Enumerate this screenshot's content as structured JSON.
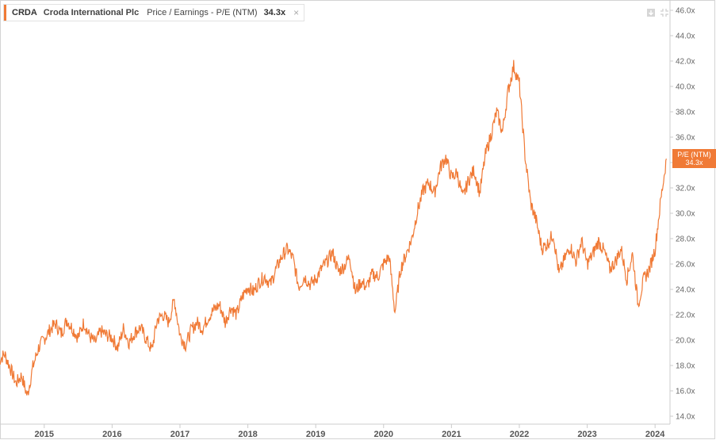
{
  "legend": {
    "ticker": "CRDA",
    "company": "Croda International Plc",
    "metric": "Price / Earnings - P/E (NTM)",
    "value": "34.3x",
    "close_icon": "×"
  },
  "toolbar": {
    "download_icon": "download-icon",
    "expand_icon": "collapse-icon"
  },
  "last_value_tag": {
    "label": "P/E (NTM)",
    "value": "34.3x"
  },
  "colors": {
    "series": "#f07a36",
    "axis": "#cccccc"
  },
  "chart_data": {
    "type": "line",
    "title": "",
    "xlabel": "",
    "ylabel": "",
    "x_ticks": [
      "2015",
      "2016",
      "2017",
      "2018",
      "2019",
      "2020",
      "2021",
      "2022",
      "2023",
      "2024"
    ],
    "y_ticks": [
      "14.0x",
      "16.0x",
      "18.0x",
      "20.0x",
      "22.0x",
      "24.0x",
      "26.0x",
      "28.0x",
      "30.0x",
      "32.0x",
      "34.0x",
      "36.0x",
      "38.0x",
      "40.0x",
      "42.0x",
      "44.0x",
      "46.0x"
    ],
    "ylim": [
      14,
      46
    ],
    "xlim": [
      "2014-05",
      "2024-03"
    ],
    "grid": false,
    "series": [
      {
        "name": "P/E (NTM)",
        "x": [
          "2014-05",
          "2014-06",
          "2014-07",
          "2014-08",
          "2014-09",
          "2014-10",
          "2014-11",
          "2014-12",
          "2015-01",
          "2015-02",
          "2015-03",
          "2015-04",
          "2015-05",
          "2015-06",
          "2015-07",
          "2015-08",
          "2015-09",
          "2015-10",
          "2015-11",
          "2015-12",
          "2016-01",
          "2016-02",
          "2016-03",
          "2016-04",
          "2016-05",
          "2016-06",
          "2016-07",
          "2016-08",
          "2016-09",
          "2016-10",
          "2016-11",
          "2016-12",
          "2017-01",
          "2017-02",
          "2017-03",
          "2017-04",
          "2017-05",
          "2017-06",
          "2017-07",
          "2017-08",
          "2017-09",
          "2017-10",
          "2017-11",
          "2017-12",
          "2018-01",
          "2018-02",
          "2018-03",
          "2018-04",
          "2018-05",
          "2018-06",
          "2018-07",
          "2018-08",
          "2018-09",
          "2018-10",
          "2018-11",
          "2018-12",
          "2019-01",
          "2019-02",
          "2019-03",
          "2019-04",
          "2019-05",
          "2019-06",
          "2019-07",
          "2019-08",
          "2019-09",
          "2019-10",
          "2019-11",
          "2019-12",
          "2020-01",
          "2020-02",
          "2020-03",
          "2020-04",
          "2020-05",
          "2020-06",
          "2020-07",
          "2020-08",
          "2020-09",
          "2020-10",
          "2020-11",
          "2020-12",
          "2021-01",
          "2021-02",
          "2021-03",
          "2021-04",
          "2021-05",
          "2021-06",
          "2021-07",
          "2021-08",
          "2021-09",
          "2021-10",
          "2021-11",
          "2021-12",
          "2022-01",
          "2022-02",
          "2022-03",
          "2022-04",
          "2022-05",
          "2022-06",
          "2022-07",
          "2022-08",
          "2022-09",
          "2022-10",
          "2022-11",
          "2022-12",
          "2023-01",
          "2023-02",
          "2023-03",
          "2023-04",
          "2023-05",
          "2023-06",
          "2023-07",
          "2023-08",
          "2023-09",
          "2023-10",
          "2023-11",
          "2023-12",
          "2024-01",
          "2024-02",
          "2024-03"
        ],
        "values": [
          18.4,
          18.9,
          17.8,
          16.6,
          17.2,
          15.6,
          17.9,
          19.4,
          20.1,
          20.8,
          21.3,
          20.5,
          21.6,
          20.9,
          20.2,
          21.4,
          20.3,
          19.8,
          20.7,
          20.4,
          20.2,
          19.4,
          20.9,
          19.8,
          20.6,
          21.0,
          20.1,
          19.2,
          21.6,
          22.0,
          21.4,
          23.2,
          20.4,
          19.6,
          20.8,
          21.4,
          20.9,
          21.8,
          22.4,
          22.8,
          21.4,
          22.6,
          22.0,
          23.4,
          24.2,
          23.8,
          24.6,
          25.0,
          24.4,
          25.6,
          26.6,
          27.2,
          26.4,
          24.2,
          25.0,
          24.4,
          24.8,
          25.6,
          26.2,
          26.9,
          25.4,
          25.8,
          26.6,
          23.8,
          24.6,
          24.2,
          25.2,
          25.0,
          26.0,
          26.6,
          22.2,
          25.6,
          26.8,
          28.0,
          30.2,
          31.8,
          32.4,
          31.6,
          33.6,
          34.4,
          32.8,
          33.2,
          31.2,
          32.6,
          33.4,
          31.6,
          34.6,
          36.2,
          38.0,
          36.4,
          39.6,
          41.6,
          40.2,
          34.6,
          30.8,
          29.4,
          27.2,
          27.6,
          28.4,
          25.2,
          26.4,
          27.4,
          26.2,
          27.8,
          26.0,
          26.8,
          27.8,
          27.0,
          25.6,
          26.2,
          27.2,
          24.8,
          26.8,
          22.8,
          24.8,
          25.6,
          27.2,
          31.0,
          34.3
        ]
      }
    ]
  }
}
